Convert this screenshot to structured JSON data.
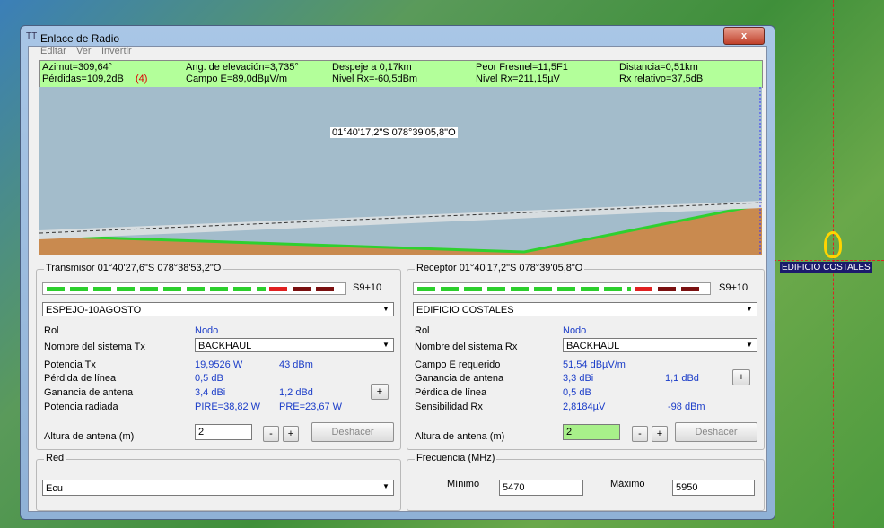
{
  "window": {
    "title": "Enlace de Radio",
    "menu": [
      "Editar",
      "Ver",
      "Invertir"
    ]
  },
  "info": {
    "row1": [
      "Azimut=309,64°",
      "Ang. de elevación=3,735°",
      "Despeje a 0,17km",
      "Peor Fresnel=11,5F1",
      "Distancia=0,51km"
    ],
    "row2": [
      "Pérdidas=109,2dB",
      "Campo E=89,0dBµV/m",
      "Nivel Rx=-60,5dBm",
      "Nivel Rx=211,15µV",
      "Rx relativo=37,5dB"
    ],
    "row2_extra": "(4)"
  },
  "profile": {
    "cursor_label": "01°40'17,2\"S 078°39'05,8\"O"
  },
  "transmitter": {
    "title": "Transmisor 01°40'27,6\"S 078°38'53,2\"O",
    "signal": "S9+10",
    "station": "ESPEJO-10AGOSTO",
    "role_label": "Rol",
    "role": "Nodo",
    "system_label": "Nombre del sistema Tx",
    "system": "BACKHAUL",
    "power_label": "Potencia Tx",
    "power_w": "19,9526 W",
    "power_dbm": "43 dBm",
    "loss_label": "Pérdida de línea",
    "loss": "0,5 dB",
    "gain_label": "Ganancia de antena",
    "gain_dbi": "3,4 dBi",
    "gain_dbd": "1,2 dBd",
    "gain_button": "+",
    "radiated_label": "Potencia radiada",
    "pire": "PIRE=38,82 W",
    "pre": "PRE=23,67 W",
    "height_label": "Altura de antena (m)",
    "height": "2",
    "minus": "-",
    "plus": "+",
    "undo": "Deshacer"
  },
  "receiver": {
    "title": "Receptor 01°40'17,2\"S 078°39'05,8\"O",
    "signal": "S9+10",
    "station": "EDIFICIO COSTALES",
    "role_label": "Rol",
    "role": "Nodo",
    "system_label": "Nombre del sistema Rx",
    "system": "BACKHAUL",
    "field_label": "Campo E requerido",
    "field": "51,54 dBµV/m",
    "gain_label": "Ganancia de antena",
    "gain_dbi": "3,3 dBi",
    "gain_dbd": "1,1 dBd",
    "gain_button": "+",
    "loss_label": "Pérdida de línea",
    "loss": "0,5 dB",
    "sens_label": "Sensibilidad Rx",
    "sens_uv": "2,8184µV",
    "sens_dbm": "-98 dBm",
    "height_label": "Altura de antena (m)",
    "height": "2",
    "minus": "-",
    "plus": "+",
    "undo": "Deshacer"
  },
  "network": {
    "title": "Red",
    "value": "Ecu"
  },
  "frequency": {
    "title": "Frecuencia (MHz)",
    "min_label": "Mínimo",
    "min": "5470",
    "max_label": "Máximo",
    "max": "5950"
  },
  "map_label": "EDIFICIO COSTALES"
}
